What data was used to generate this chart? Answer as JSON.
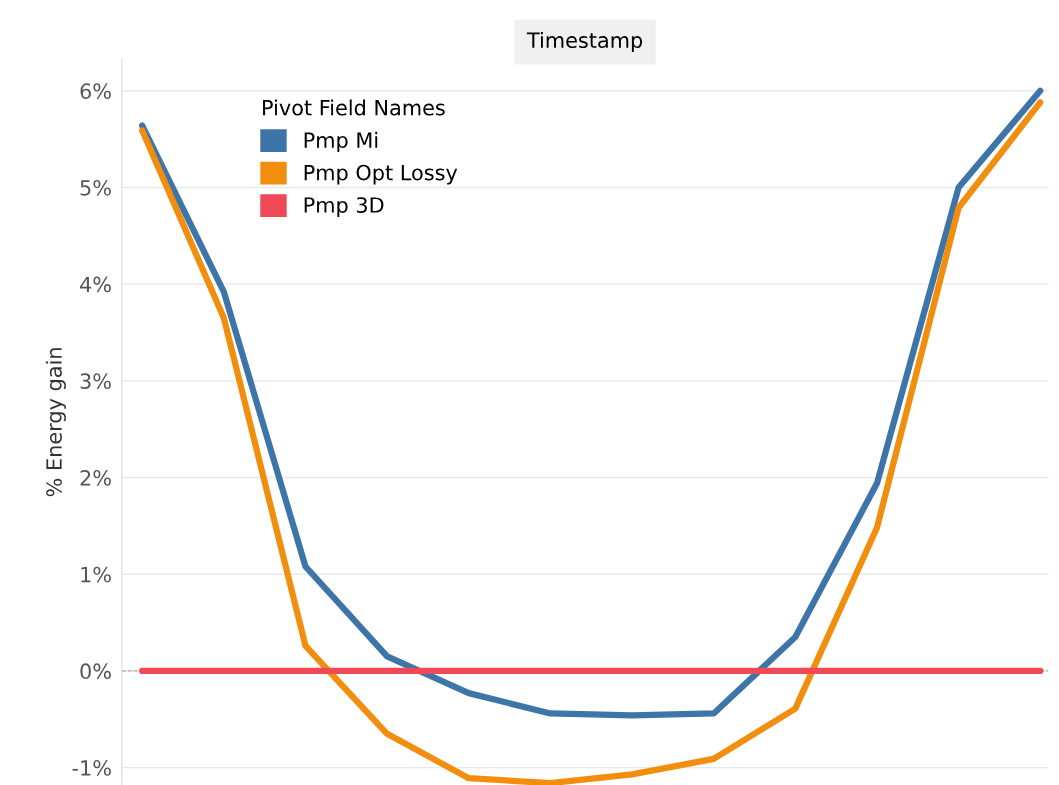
{
  "chart_data": {
    "type": "line",
    "xlabel": "Timestamp",
    "ylabel": "% Energy gain",
    "legend_title": "Pivot Field Names",
    "legend": "top left",
    "grid": "y",
    "tick_labels": "y",
    "categories": [
      null,
      null,
      null,
      null,
      null,
      null,
      null,
      null,
      null,
      null,
      null,
      null
    ],
    "ylim": [
      -1.18,
      6.33
    ],
    "yticks": [
      {
        "value": -1,
        "label": "-1%"
      },
      {
        "value": 0,
        "label": "0%"
      },
      {
        "value": 1,
        "label": "1%"
      },
      {
        "value": 2,
        "label": "2%"
      },
      {
        "value": 3,
        "label": "3%"
      },
      {
        "value": 4,
        "label": "4%"
      },
      {
        "value": 5,
        "label": "5%"
      },
      {
        "value": 6,
        "label": "6%"
      }
    ],
    "ref_lines": [
      {
        "axis": "y",
        "value": 0,
        "color": "#aaaaaa",
        "line_style": "dashed"
      }
    ],
    "series": [
      {
        "name": "Pmp Mi",
        "color": "#3e75a8",
        "values": [
          5.64,
          3.92,
          1.08,
          0.15,
          -0.23,
          -0.44,
          -0.46,
          -0.44,
          0.35,
          1.94,
          5.0,
          6.0
        ]
      },
      {
        "name": "Pmp Opt Lossy",
        "color": "#f28e0e",
        "values": [
          5.59,
          3.65,
          0.26,
          -0.65,
          -1.11,
          -1.16,
          -1.07,
          -0.91,
          -0.39,
          1.48,
          4.79,
          5.88
        ]
      },
      {
        "name": "Pmp 3D",
        "color": "#ef4958",
        "values": [
          0,
          0,
          0,
          0,
          0,
          0,
          0,
          0,
          0,
          0,
          0,
          0
        ]
      }
    ]
  }
}
